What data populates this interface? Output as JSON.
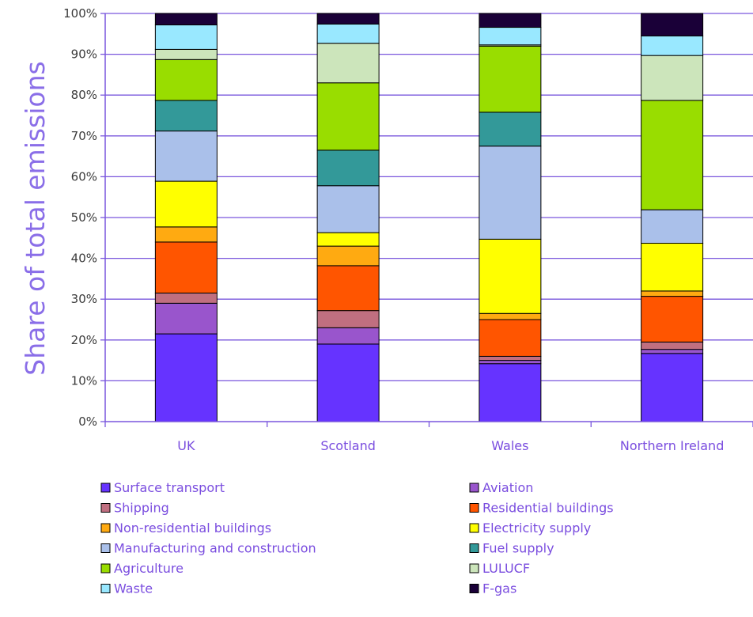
{
  "chart_data": {
    "type": "bar",
    "stacked": true,
    "ylabel": "Share of total emissions",
    "xlabel": "",
    "ylim": [
      0,
      100
    ],
    "y_ticks": [
      "0%",
      "10%",
      "20%",
      "30%",
      "40%",
      "50%",
      "60%",
      "70%",
      "80%",
      "90%",
      "100%"
    ],
    "grid": true,
    "legend_position": "bottom",
    "categories": [
      "UK",
      "Scotland",
      "Wales",
      "Northern Ireland"
    ],
    "series": [
      {
        "name": "Surface transport",
        "color": "#6633ff",
        "values": [
          21.5,
          19.0,
          14.2,
          16.7
        ]
      },
      {
        "name": "Aviation",
        "color": "#9955cc",
        "values": [
          7.5,
          4.0,
          0.8,
          1.0
        ]
      },
      {
        "name": "Shipping",
        "color": "#c06f80",
        "values": [
          2.5,
          4.2,
          1.0,
          1.8
        ]
      },
      {
        "name": "Residential buildings",
        "color": "#ff5500",
        "values": [
          12.5,
          11.0,
          9.0,
          11.2
        ]
      },
      {
        "name": "Non-residential buildings",
        "color": "#ffaa11",
        "values": [
          3.7,
          4.8,
          1.5,
          1.3
        ]
      },
      {
        "name": "Electricity supply",
        "color": "#ffff00",
        "values": [
          11.2,
          3.3,
          18.2,
          11.7
        ]
      },
      {
        "name": "Manufacturing and construction",
        "color": "#aac0ea",
        "values": [
          12.3,
          11.5,
          22.8,
          8.2
        ]
      },
      {
        "name": "Fuel supply",
        "color": "#339999",
        "values": [
          7.5,
          8.7,
          8.3,
          0.0
        ]
      },
      {
        "name": "Agriculture",
        "color": "#99dd00",
        "values": [
          10.0,
          16.5,
          16.2,
          26.8
        ]
      },
      {
        "name": "LULUCF",
        "color": "#cce5bb",
        "values": [
          2.5,
          9.7,
          0.3,
          11.0
        ]
      },
      {
        "name": "Waste",
        "color": "#99e8ff",
        "values": [
          6.0,
          4.7,
          4.3,
          4.8
        ]
      },
      {
        "name": "F-gas",
        "color": "#1a0038",
        "values": [
          2.8,
          2.6,
          3.4,
          5.5
        ]
      }
    ]
  }
}
